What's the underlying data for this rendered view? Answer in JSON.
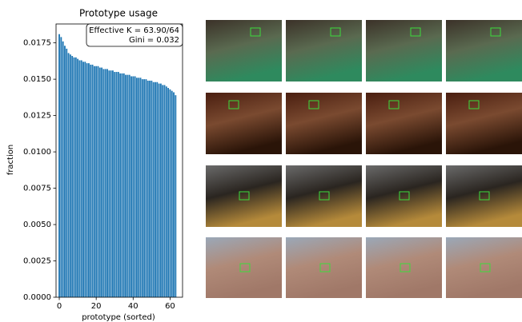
{
  "chart_data": {
    "type": "bar",
    "title": "Prototype usage",
    "xlabel": "prototype (sorted)",
    "ylabel": "fraction",
    "annotation": [
      "Effective K = 63.90/64",
      "Gini = 0.032"
    ],
    "x": [
      0,
      1,
      2,
      3,
      4,
      5,
      6,
      7,
      8,
      9,
      10,
      11,
      12,
      13,
      14,
      15,
      16,
      17,
      18,
      19,
      20,
      21,
      22,
      23,
      24,
      25,
      26,
      27,
      28,
      29,
      30,
      31,
      32,
      33,
      34,
      35,
      36,
      37,
      38,
      39,
      40,
      41,
      42,
      43,
      44,
      45,
      46,
      47,
      48,
      49,
      50,
      51,
      52,
      53,
      54,
      55,
      56,
      57,
      58,
      59,
      60,
      61,
      62,
      63
    ],
    "values": [
      0.0181,
      0.0179,
      0.0176,
      0.0173,
      0.0171,
      0.0168,
      0.0167,
      0.0166,
      0.0165,
      0.0165,
      0.0164,
      0.0163,
      0.0163,
      0.0162,
      0.0162,
      0.0161,
      0.0161,
      0.016,
      0.016,
      0.0159,
      0.0159,
      0.0159,
      0.0158,
      0.0158,
      0.0157,
      0.0157,
      0.0157,
      0.0156,
      0.0156,
      0.0156,
      0.0155,
      0.0155,
      0.0155,
      0.0154,
      0.0154,
      0.0154,
      0.0153,
      0.0153,
      0.0153,
      0.0152,
      0.0152,
      0.0152,
      0.0151,
      0.0151,
      0.0151,
      0.015,
      0.015,
      0.015,
      0.0149,
      0.0149,
      0.0149,
      0.0148,
      0.0148,
      0.0148,
      0.0147,
      0.0147,
      0.0146,
      0.0146,
      0.0145,
      0.0144,
      0.0143,
      0.0142,
      0.0141,
      0.0139
    ],
    "color": "#1f77b4",
    "xlim": [
      -1.75,
      66.75
    ],
    "xticks": [
      0,
      20,
      40,
      60
    ],
    "ylim": [
      0,
      0.0188
    ],
    "yticks": [
      {
        "value": 0,
        "label": "0.0000"
      },
      {
        "value": 0.0025,
        "label": "0.0025"
      },
      {
        "value": 0.005,
        "label": "0.0050"
      },
      {
        "value": 0.0075,
        "label": "0.0075"
      },
      {
        "value": 0.01,
        "label": "0.0100"
      },
      {
        "value": 0.0125,
        "label": "0.0125"
      },
      {
        "value": 0.015,
        "label": "0.0150"
      },
      {
        "value": 0.0175,
        "label": "0.0175"
      }
    ],
    "grid": false
  }
}
